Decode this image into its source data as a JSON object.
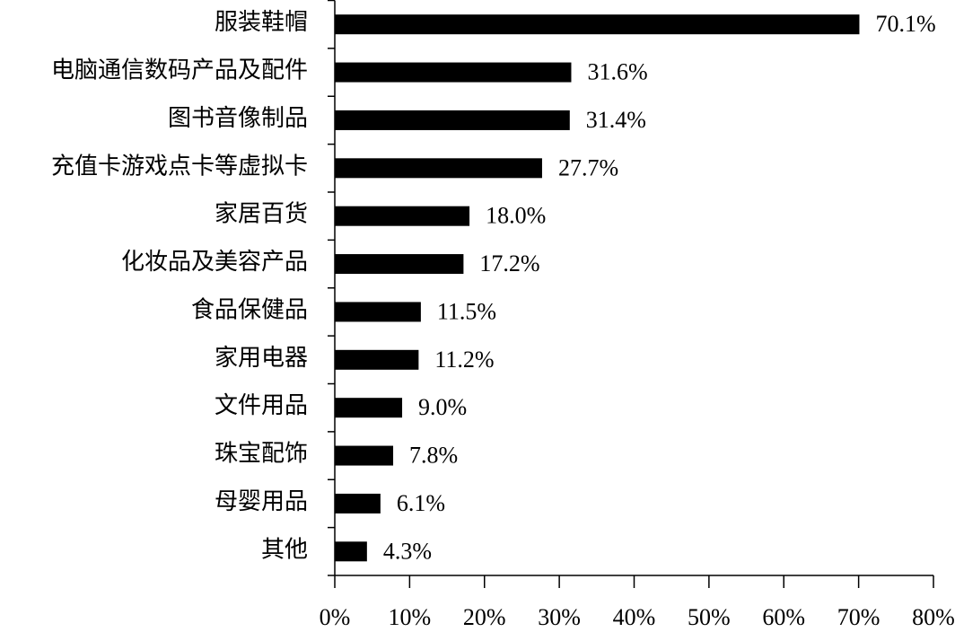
{
  "chart_data": {
    "type": "barh",
    "categories": [
      "服装鞋帽",
      "电脑通信数码产品及配件",
      "图书音像制品",
      "充值卡游戏点卡等虚拟卡",
      "家居百货",
      "化妆品及美容产品",
      "食品保健品",
      "家用电器",
      "文件用品",
      "珠宝配饰",
      "母婴用品",
      "其他"
    ],
    "values": [
      70.1,
      31.6,
      31.4,
      27.7,
      18.0,
      17.2,
      11.5,
      11.2,
      9.0,
      7.8,
      6.1,
      4.3
    ],
    "value_labels": [
      "70.1%",
      "31.6%",
      "31.4%",
      "27.7%",
      "18.0%",
      "17.2%",
      "11.5%",
      "11.2%",
      "9.0%",
      "7.8%",
      "6.1%",
      "4.3%"
    ],
    "color": "#000000",
    "xlim": [
      0,
      80
    ],
    "xticks": [
      {
        "value": 0,
        "label": "0%"
      },
      {
        "value": 10,
        "label": "10%"
      },
      {
        "value": 20,
        "label": "20%"
      },
      {
        "value": 30,
        "label": "30%"
      },
      {
        "value": 40,
        "label": "40%"
      },
      {
        "value": 50,
        "label": "50%"
      },
      {
        "value": 60,
        "label": "60%"
      },
      {
        "value": 70,
        "label": "70%"
      },
      {
        "value": 80,
        "label": "80%"
      }
    ]
  }
}
